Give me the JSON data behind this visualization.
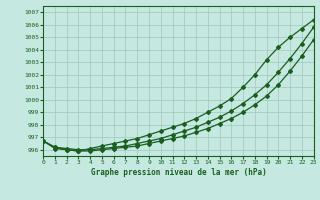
{
  "title": "Graphe pression niveau de la mer (hPa)",
  "background_color": "#c5e8e0",
  "grid_color": "#a0c8bc",
  "line_color": "#1a5e20",
  "xlim": [
    0,
    23
  ],
  "ylim": [
    995.5,
    1007.5
  ],
  "yticks": [
    996,
    997,
    998,
    999,
    1000,
    1001,
    1002,
    1003,
    1004,
    1005,
    1006,
    1007
  ],
  "xticks": [
    0,
    1,
    2,
    3,
    4,
    5,
    6,
    7,
    8,
    9,
    10,
    11,
    12,
    13,
    14,
    15,
    16,
    17,
    18,
    19,
    20,
    21,
    22,
    23
  ],
  "series1": [
    996.7,
    996.1,
    996.0,
    995.9,
    996.1,
    996.3,
    996.5,
    996.7,
    996.9,
    997.2,
    997.5,
    997.8,
    998.1,
    998.5,
    999.0,
    999.5,
    1000.1,
    1001.0,
    1002.0,
    1003.2,
    1004.2,
    1005.0,
    1005.7,
    1006.4
  ],
  "series2": [
    996.7,
    996.2,
    996.1,
    996.0,
    996.0,
    996.1,
    996.2,
    996.3,
    996.5,
    996.7,
    996.9,
    997.2,
    997.5,
    997.8,
    998.2,
    998.6,
    999.1,
    999.7,
    1000.4,
    1001.2,
    1002.2,
    1003.3,
    1004.5,
    1005.8
  ],
  "series3": [
    996.7,
    996.2,
    996.0,
    995.9,
    995.9,
    996.0,
    996.1,
    996.2,
    996.3,
    996.5,
    996.7,
    996.9,
    997.1,
    997.4,
    997.7,
    998.1,
    998.5,
    999.0,
    999.6,
    1000.3,
    1001.2,
    1002.3,
    1003.5,
    1004.8
  ]
}
